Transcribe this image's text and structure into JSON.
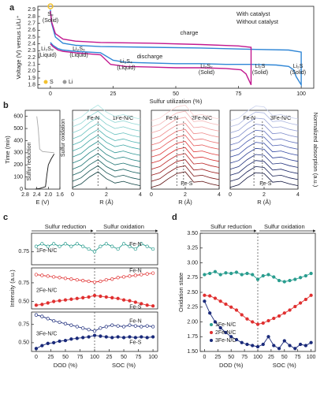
{
  "chart_data": [
    {
      "type": "line",
      "panel": "a",
      "xlabel": "Sulfur utilization (%)",
      "ylabel": "Voltage (V) versus Li/Li⁺",
      "xlim": [
        -5,
        105
      ],
      "xticks": [
        0,
        25,
        50,
        75,
        100
      ],
      "ylim": [
        1.75,
        2.95
      ],
      "yticks": [
        1.8,
        1.9,
        {
          "value": 2,
          "label": "2.0"
        },
        2.1,
        2.2,
        2.3,
        2.4,
        2.5,
        2.6,
        2.7,
        2.8,
        2.9
      ],
      "series": [
        {
          "name": "With catalyst",
          "color": "#2f86d6",
          "x": [
            0,
            1,
            3,
            5,
            10,
            20,
            25,
            30,
            40,
            50,
            60,
            70,
            80,
            90,
            95,
            97,
            98,
            100,
            100,
            95,
            80,
            60,
            40,
            20,
            10,
            5,
            2,
            0.5,
            0
          ],
          "values": [
            2.42,
            2.38,
            2.33,
            2.31,
            2.29,
            2.27,
            2.16,
            2.13,
            2.12,
            2.11,
            2.11,
            2.1,
            2.1,
            2.09,
            2.07,
            2.02,
            1.92,
            1.8,
            2.28,
            2.31,
            2.32,
            2.34,
            2.35,
            2.36,
            2.38,
            2.41,
            2.5,
            2.7,
            2.9
          ]
        },
        {
          "name": "Without catalyst",
          "color": "#c2188f",
          "x": [
            0,
            1,
            3,
            5,
            10,
            20,
            24,
            30,
            40,
            50,
            60,
            70,
            76,
            78,
            79,
            80,
            80,
            75,
            60,
            40,
            20,
            10,
            5,
            2,
            0.5,
            0
          ],
          "values": [
            2.4,
            2.36,
            2.31,
            2.29,
            2.27,
            2.24,
            2.1,
            2.07,
            2.06,
            2.05,
            2.05,
            2.04,
            2.02,
            1.96,
            1.88,
            1.8,
            2.35,
            2.37,
            2.39,
            2.41,
            2.42,
            2.44,
            2.47,
            2.55,
            2.72,
            2.88
          ]
        }
      ],
      "annotations": [
        [
          "S₈",
          "(Solid)"
        ],
        [
          "Li₂S₈",
          "(Liquid)"
        ],
        [
          "Li₂S₆",
          "(Liquid)"
        ],
        [
          "Li₂S₄",
          "(Liquid)"
        ],
        [
          "Li₂S₂",
          "(Solid)"
        ],
        [
          "Li₂S",
          "(Solid)"
        ],
        [
          "Li₂S",
          "(Solid)"
        ]
      ],
      "texts": [
        "charge",
        "discharge"
      ],
      "keys": [
        "S",
        "Li"
      ]
    },
    {
      "type": "line",
      "panel": "b",
      "xlabel": "E (V)",
      "ylabel": "Time (min)",
      "xlim": [
        2.8,
        1.6
      ],
      "xticks": [
        2.8,
        2.4,
        {
          "value": 2,
          "label": "2.0"
        },
        1.6
      ],
      "ylim": [
        0,
        650
      ],
      "yticks": [
        0,
        100,
        200,
        300,
        400,
        500,
        600
      ],
      "series": [
        {
          "name": "Sulfur reduction",
          "color": "#111111",
          "x": [
            2.45,
            2.3,
            2.1,
            2.08,
            2.05,
            2,
            1.9,
            1.8
          ],
          "values": [
            0,
            5,
            20,
            60,
            120,
            200,
            250,
            290
          ]
        },
        {
          "name": "Sulfur oxidation",
          "color": "#aaaaaa",
          "x": [
            1.8,
            2.2,
            2.3,
            2.32,
            2.35,
            2.4
          ],
          "values": [
            300,
            310,
            330,
            400,
            500,
            600
          ]
        }
      ]
    },
    {
      "type": "spectra",
      "title": "1Fe-N/C",
      "xlabel": "R (Å)",
      "xlim": [
        0,
        4
      ],
      "xticks": [
        0,
        2,
        4
      ],
      "ylim": [
        0,
        650
      ],
      "x": [
        0,
        0.5,
        1,
        1.5,
        2,
        2.5,
        3,
        3.5,
        4
      ],
      "profile": [
        0.1,
        0.3,
        0.7,
        1,
        0.6,
        0.35,
        0.45,
        0.3,
        0.2
      ],
      "times": [
        0,
        50,
        100,
        150,
        200,
        250,
        300,
        350,
        400,
        450,
        500,
        550
      ],
      "colors": [
        "#0b3f3f",
        "#10504f",
        "#16615f",
        "#1c7270",
        "#248482",
        "#2e9593",
        "#3aa5a3",
        "#4fb3b1",
        "#66c0be",
        "#7ecdcb",
        "#96d9d7",
        "#aee4e2"
      ],
      "markers": [
        {
          "label": "Fe-N",
          "x": 1.5
        }
      ]
    },
    {
      "type": "spectra",
      "title": "2Fe-N/C",
      "xlabel": "R (Å)",
      "xlim": [
        0,
        4
      ],
      "xticks": [
        0,
        2,
        4
      ],
      "ylim": [
        0,
        650
      ],
      "x": [
        0,
        0.5,
        1,
        1.5,
        2,
        2.5,
        3,
        3.5,
        4
      ],
      "profile": [
        0.1,
        0.25,
        0.6,
        0.9,
        1,
        0.4,
        0.45,
        0.3,
        0.2
      ],
      "times": [
        0,
        50,
        100,
        150,
        200,
        250,
        300,
        350,
        400,
        450,
        500,
        550
      ],
      "colors": [
        "#5a0c0c",
        "#7a1212",
        "#9a1818",
        "#b81f1f",
        "#d42a2a",
        "#e03c3c",
        "#e65656",
        "#ea7070",
        "#ee8a8a",
        "#f2a2a2",
        "#f5baba",
        "#f8d0d0"
      ],
      "markers": [
        {
          "label": "Fe-N",
          "x": 1.5
        },
        {
          "label": "Fe-S",
          "x": 1.9
        }
      ]
    },
    {
      "type": "spectra",
      "title": "3Fe-N/C",
      "xlabel": "R (Å)",
      "xlim": [
        0,
        4
      ],
      "xticks": [
        0,
        2,
        4
      ],
      "ylim": [
        0,
        650
      ],
      "side_label": "Normalized absorption (a.u.)",
      "x": [
        0,
        0.5,
        1,
        1.5,
        2,
        2.5,
        3,
        3.5,
        4
      ],
      "profile": [
        0.1,
        0.25,
        0.65,
        0.95,
        0.9,
        0.4,
        0.45,
        0.3,
        0.2
      ],
      "times": [
        0,
        50,
        100,
        150,
        200,
        250,
        300,
        350,
        400,
        450,
        500,
        550
      ],
      "colors": [
        "#0a0f3a",
        "#111a50",
        "#182566",
        "#20307c",
        "#283c92",
        "#3449a3",
        "#4a5db0",
        "#6272bd",
        "#7c8aca",
        "#96a2d6",
        "#b0bae2",
        "#c8d0ec"
      ],
      "markers": [
        {
          "label": "Fe-N",
          "x": 1.4
        },
        {
          "label": "Fe-S",
          "x": 1.9
        }
      ]
    },
    {
      "type": "line",
      "panel": "c",
      "title": "1Fe-N/C",
      "headers": [
        "Sulfur reduction",
        "Sulfur oxidation"
      ],
      "vline": 100,
      "xlim": [
        -8,
        208
      ],
      "ylim": [
        0.7,
        0.82
      ],
      "yticks": [
        0.75
      ],
      "x": [
        0,
        10,
        20,
        30,
        40,
        50,
        60,
        70,
        80,
        90,
        100,
        110,
        120,
        130,
        140,
        150,
        160,
        170,
        180,
        190,
        200
      ],
      "series": [
        {
          "name": "Fe-N",
          "color": "#2a9d8f",
          "marker": "open",
          "values": [
            0.77,
            0.78,
            0.77,
            0.78,
            0.77,
            0.78,
            0.77,
            0.78,
            0.77,
            0.76,
            0.75,
            0.77,
            0.78,
            0.77,
            0.76,
            0.78,
            0.77,
            0.76,
            0.78,
            0.77,
            0.76
          ]
        }
      ]
    },
    {
      "type": "line",
      "title": "2Fe-N/C",
      "ylabel": "Intensity (a.u.)",
      "vline": 100,
      "xlim": [
        -8,
        208
      ],
      "ylim": [
        0.4,
        0.95
      ],
      "yticks": [
        {
          "value": 0.5,
          "label": "0.50"
        },
        0.75
      ],
      "x": [
        0,
        10,
        20,
        30,
        40,
        50,
        60,
        70,
        80,
        90,
        100,
        110,
        120,
        130,
        140,
        150,
        160,
        170,
        180,
        190,
        200
      ],
      "series": [
        {
          "name": "Fe-N",
          "color": "#e03030",
          "marker": "open",
          "values": [
            0.86,
            0.85,
            0.84,
            0.83,
            0.82,
            0.81,
            0.8,
            0.79,
            0.78,
            0.77,
            0.76,
            0.77,
            0.79,
            0.8,
            0.82,
            0.83,
            0.84,
            0.85,
            0.86,
            0.87,
            0.88
          ]
        },
        {
          "name": "Fe-S",
          "color": "#e03030",
          "marker": "filled",
          "values": [
            0.45,
            0.46,
            0.48,
            0.5,
            0.51,
            0.52,
            0.53,
            0.54,
            0.55,
            0.56,
            0.58,
            0.57,
            0.56,
            0.55,
            0.54,
            0.52,
            0.51,
            0.49,
            0.47,
            0.45,
            0.44
          ]
        }
      ]
    },
    {
      "type": "line",
      "title": "3Fe-N/C",
      "xlabels": [
        "DOD (%)",
        "SOC (%)"
      ],
      "vline": 100,
      "xlim": [
        -8,
        208
      ],
      "xticks": [
        0,
        25,
        50,
        75,
        100,
        {
          "value": 125,
          "label": "25"
        },
        {
          "value": 150,
          "label": "50"
        },
        {
          "value": 175,
          "label": "75"
        },
        {
          "value": 200,
          "label": "100"
        }
      ],
      "ylim": [
        0.38,
        0.92
      ],
      "yticks": [
        {
          "value": 0.5,
          "label": "0.50"
        },
        0.75
      ],
      "x": [
        0,
        10,
        20,
        30,
        40,
        50,
        60,
        70,
        80,
        90,
        100,
        110,
        120,
        130,
        140,
        150,
        160,
        170,
        180,
        190,
        200
      ],
      "series": [
        {
          "name": "Fe-N",
          "color": "#1a2a7a",
          "marker": "open",
          "values": [
            0.88,
            0.86,
            0.83,
            0.8,
            0.78,
            0.76,
            0.74,
            0.72,
            0.7,
            0.68,
            0.66,
            0.7,
            0.72,
            0.74,
            0.73,
            0.72,
            0.74,
            0.73,
            0.72,
            0.73,
            0.72
          ]
        },
        {
          "name": "Fe-S",
          "color": "#1a2a7a",
          "marker": "filled",
          "values": [
            0.42,
            0.46,
            0.49,
            0.5,
            0.52,
            0.53,
            0.55,
            0.56,
            0.57,
            0.58,
            0.6,
            0.59,
            0.58,
            0.57,
            0.58,
            0.57,
            0.58,
            0.57,
            0.58,
            0.57,
            0.58
          ]
        }
      ]
    },
    {
      "type": "line",
      "panel": "d",
      "headers": [
        "Sulfur reduction",
        "Sulfur oxidation"
      ],
      "ylabel": "Oxidation state",
      "xlabels": [
        "DOD (%)",
        "SOC (%)"
      ],
      "vline": 100,
      "xlim": [
        -8,
        208
      ],
      "xticks": [
        0,
        25,
        50,
        75,
        100,
        {
          "value": 125,
          "label": "25"
        },
        {
          "value": 150,
          "label": "50"
        },
        {
          "value": 175,
          "label": "75"
        },
        {
          "value": 200,
          "label": "100"
        }
      ],
      "ylim": [
        1.5,
        3.5
      ],
      "yticks": [
        {
          "value": 1.5,
          "label": "1.50"
        },
        1.75,
        {
          "value": 2,
          "label": "2.00"
        },
        2.25,
        {
          "value": 2.5,
          "label": "2.50"
        },
        2.75,
        {
          "value": 3,
          "label": "3.00"
        },
        3.25,
        {
          "value": 3.5,
          "label": "3.50"
        }
      ],
      "x": [
        0,
        10,
        20,
        30,
        40,
        50,
        60,
        70,
        80,
        90,
        100,
        110,
        120,
        130,
        140,
        150,
        160,
        170,
        180,
        190,
        200
      ],
      "series": [
        {
          "name": "1Fe-N/C",
          "color": "#2a9d8f",
          "marker": "filled",
          "values": [
            2.8,
            2.82,
            2.85,
            2.8,
            2.83,
            2.82,
            2.84,
            2.8,
            2.82,
            2.8,
            2.72,
            2.78,
            2.8,
            2.76,
            2.7,
            2.68,
            2.7,
            2.72,
            2.75,
            2.78,
            2.82
          ]
        },
        {
          "name": "2Fe-N/C",
          "color": "#e03030",
          "marker": "filled",
          "values": [
            2.45,
            2.44,
            2.4,
            2.35,
            2.3,
            2.25,
            2.2,
            2.12,
            2.05,
            2,
            1.96,
            1.98,
            2.02,
            2.06,
            2.1,
            2.15,
            2.2,
            2.26,
            2.32,
            2.38,
            2.45
          ]
        },
        {
          "name": "3Fe-N/C",
          "color": "#1a2a7a",
          "marker": "filled",
          "values": [
            2.35,
            2.15,
            2,
            1.9,
            1.82,
            1.75,
            1.7,
            1.65,
            1.62,
            1.6,
            1.58,
            1.62,
            1.75,
            1.6,
            1.55,
            1.68,
            1.6,
            1.55,
            1.62,
            1.6,
            1.65
          ]
        }
      ]
    }
  ]
}
